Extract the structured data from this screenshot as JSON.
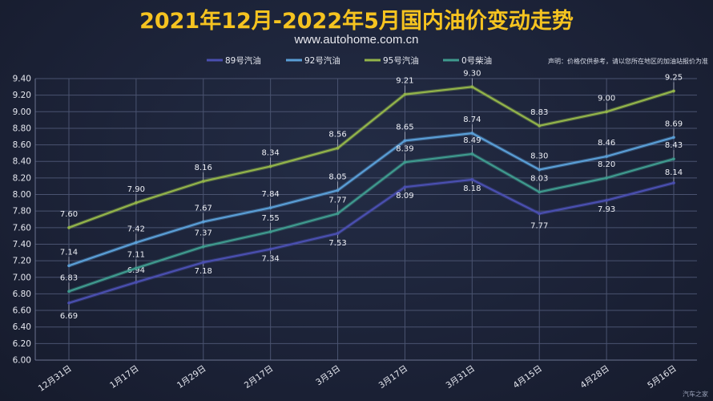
{
  "title": "2021年12月-2022年5月国内油价变动走势",
  "subtitle": "www.autohome.com.cn",
  "disclaimer": "声明：价格仅供参考，请以您所在地区的加油站报价为准",
  "watermark": "汽车之家",
  "chart_data": {
    "type": "line",
    "categories": [
      "12月31日",
      "1月17日",
      "1月29日",
      "2月17日",
      "3月3日",
      "3月17日",
      "3月31日",
      "4月15日",
      "4月28日",
      "5月16日"
    ],
    "ylim": [
      6.0,
      9.4
    ],
    "yticks": [
      "6.00",
      "6.20",
      "6.40",
      "6.60",
      "6.80",
      "7.00",
      "7.20",
      "7.40",
      "7.60",
      "7.80",
      "8.00",
      "8.20",
      "8.40",
      "8.60",
      "8.80",
      "9.00",
      "9.20",
      "9.40"
    ],
    "grid": true,
    "legend_position": "top",
    "series": [
      {
        "name": "89号汽油",
        "color": "#4a4fb0",
        "values": [
          6.69,
          6.94,
          7.18,
          7.34,
          7.53,
          8.09,
          8.18,
          7.77,
          7.93,
          8.14
        ],
        "labels": [
          "6.69",
          "6.94",
          "7.18",
          "7.34",
          "7.53",
          "8.09",
          "8.18",
          "7.77",
          "7.93",
          "8.14"
        ]
      },
      {
        "name": "92号汽油",
        "color": "#5a9ed6",
        "values": [
          7.14,
          7.42,
          7.67,
          7.84,
          8.05,
          8.65,
          8.74,
          8.3,
          8.46,
          8.69
        ],
        "labels": [
          "7.14",
          "7.42",
          "7.67",
          "7.84",
          "8.05",
          "8.65",
          "8.74",
          "8.30",
          "8.46",
          "8.69"
        ]
      },
      {
        "name": "95号汽油",
        "color": "#93b44a",
        "values": [
          7.6,
          7.9,
          8.16,
          8.34,
          8.56,
          9.21,
          9.3,
          8.83,
          9.0,
          9.25
        ],
        "labels": [
          "7.60",
          "7.90",
          "8.16",
          "8.34",
          "8.56",
          "9.21",
          "9.30",
          "8.83",
          "9.00",
          "9.25"
        ]
      },
      {
        "name": "0号柴油",
        "color": "#3f9a8e",
        "values": [
          6.83,
          7.11,
          7.37,
          7.55,
          7.77,
          8.39,
          8.49,
          8.03,
          8.2,
          8.43
        ],
        "labels": [
          "6.83",
          "7.11",
          "7.37",
          "7.55",
          "7.77",
          "8.39",
          "8.49",
          "8.03",
          "8.20",
          "8.43"
        ]
      }
    ]
  }
}
